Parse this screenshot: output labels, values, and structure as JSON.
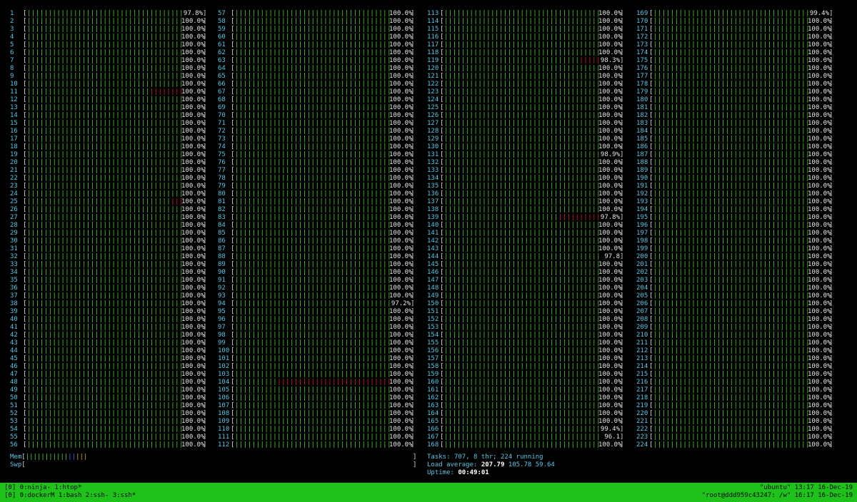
{
  "cpus": [
    {
      "n": "1",
      "pct": "97.8%",
      "red": 3
    },
    {
      "n": "2",
      "pct": "100.0%",
      "red": 0
    },
    {
      "n": "3",
      "pct": "100.0%",
      "red": 0
    },
    {
      "n": "4",
      "pct": "100.0%",
      "red": 0
    },
    {
      "n": "5",
      "pct": "100.0%",
      "red": 0
    },
    {
      "n": "6",
      "pct": "100.0%",
      "red": 0
    },
    {
      "n": "7",
      "pct": "100.0%",
      "red": 0
    },
    {
      "n": "8",
      "pct": "100.0%",
      "red": 0
    },
    {
      "n": "9",
      "pct": "100.0%",
      "red": 0
    },
    {
      "n": "10",
      "pct": "100.0%",
      "red": 0
    },
    {
      "n": "11",
      "pct": "100.0%",
      "red": 11
    },
    {
      "n": "12",
      "pct": "100.0%",
      "red": 0
    },
    {
      "n": "13",
      "pct": "100.0%",
      "red": 0
    },
    {
      "n": "14",
      "pct": "100.0%",
      "red": 0
    },
    {
      "n": "15",
      "pct": "100.0%",
      "red": 0
    },
    {
      "n": "16",
      "pct": "100.0%",
      "red": 0
    },
    {
      "n": "17",
      "pct": "100.0%",
      "red": 0
    },
    {
      "n": "18",
      "pct": "100.0%",
      "red": 0
    },
    {
      "n": "19",
      "pct": "100.0%",
      "red": 1
    },
    {
      "n": "20",
      "pct": "100.0%",
      "red": 2
    },
    {
      "n": "21",
      "pct": "100.0%",
      "red": 0
    },
    {
      "n": "22",
      "pct": "100.0%",
      "red": 0
    },
    {
      "n": "23",
      "pct": "100.0%",
      "red": 0
    },
    {
      "n": "24",
      "pct": "100.0%",
      "red": 0
    },
    {
      "n": "25",
      "pct": "100.0%",
      "red": 6
    },
    {
      "n": "26",
      "pct": "100.0%",
      "red": 0
    },
    {
      "n": "27",
      "pct": "100.0%",
      "red": 2
    },
    {
      "n": "28",
      "pct": "100.0%",
      "red": 3
    },
    {
      "n": "29",
      "pct": "100.0%",
      "red": 1
    },
    {
      "n": "30",
      "pct": "100.0%",
      "red": 1
    },
    {
      "n": "31",
      "pct": "100.0%",
      "red": 0
    },
    {
      "n": "32",
      "pct": "100.0%",
      "red": 1
    },
    {
      "n": "33",
      "pct": "100.0%",
      "red": 1
    },
    {
      "n": "34",
      "pct": "100.0%",
      "red": 0
    },
    {
      "n": "35",
      "pct": "100.0%",
      "red": 0
    },
    {
      "n": "36",
      "pct": "100.0%",
      "red": 0
    },
    {
      "n": "37",
      "pct": "100.0%",
      "red": 0
    },
    {
      "n": "38",
      "pct": "100.0%",
      "red": 0
    },
    {
      "n": "39",
      "pct": "100.0%",
      "red": 0
    },
    {
      "n": "40",
      "pct": "100.0%",
      "red": 1
    },
    {
      "n": "41",
      "pct": "100.0%",
      "red": 0
    },
    {
      "n": "42",
      "pct": "100.0%",
      "red": 0
    },
    {
      "n": "43",
      "pct": "100.0%",
      "red": 2
    },
    {
      "n": "44",
      "pct": "100.0%",
      "red": 0
    },
    {
      "n": "45",
      "pct": "100.0%",
      "red": 0
    },
    {
      "n": "46",
      "pct": "100.0%",
      "red": 0
    },
    {
      "n": "47",
      "pct": "100.0%",
      "red": 0
    },
    {
      "n": "48",
      "pct": "100.0%",
      "red": 0
    },
    {
      "n": "49",
      "pct": "100.0%",
      "red": 0
    },
    {
      "n": "50",
      "pct": "100.0%",
      "red": 0
    },
    {
      "n": "51",
      "pct": "100.0%",
      "red": 0
    },
    {
      "n": "52",
      "pct": "100.0%",
      "red": 0
    },
    {
      "n": "53",
      "pct": "100.0%",
      "red": 0
    },
    {
      "n": "54",
      "pct": "100.0%",
      "red": 2
    },
    {
      "n": "55",
      "pct": "100.0%",
      "red": 0
    },
    {
      "n": "56",
      "pct": "100.0%",
      "red": 0
    },
    {
      "n": "57",
      "pct": "100.0%",
      "red": 0
    },
    {
      "n": "58",
      "pct": "100.0%",
      "red": 0
    },
    {
      "n": "59",
      "pct": "100.0%",
      "red": 0
    },
    {
      "n": "60",
      "pct": "100.0%",
      "red": 0
    },
    {
      "n": "61",
      "pct": "100.0%",
      "red": 0
    },
    {
      "n": "62",
      "pct": "100.0%",
      "red": 0
    },
    {
      "n": "63",
      "pct": "100.0%",
      "red": 0
    },
    {
      "n": "64",
      "pct": "100.0%",
      "red": 3
    },
    {
      "n": "65",
      "pct": "100.0%",
      "red": 0
    },
    {
      "n": "66",
      "pct": "100.0%",
      "red": 0
    },
    {
      "n": "67",
      "pct": "100.0%",
      "red": 0
    },
    {
      "n": "68",
      "pct": "100.0%",
      "red": 0
    },
    {
      "n": "69",
      "pct": "100.0%",
      "red": 0
    },
    {
      "n": "70",
      "pct": "100.0%",
      "red": 0
    },
    {
      "n": "71",
      "pct": "100.0%",
      "red": 0
    },
    {
      "n": "72",
      "pct": "100.0%",
      "red": 0
    },
    {
      "n": "73",
      "pct": "100.0%",
      "red": 0
    },
    {
      "n": "74",
      "pct": "100.0%",
      "red": 0
    },
    {
      "n": "75",
      "pct": "100.0%",
      "red": 0
    },
    {
      "n": "76",
      "pct": "100.0%",
      "red": 0
    },
    {
      "n": "77",
      "pct": "100.0%",
      "red": 0
    },
    {
      "n": "78",
      "pct": "100.0%",
      "red": 0
    },
    {
      "n": "79",
      "pct": "100.0%",
      "red": 0
    },
    {
      "n": "80",
      "pct": "100.0%",
      "red": 0
    },
    {
      "n": "81",
      "pct": "100.0%",
      "red": 0
    },
    {
      "n": "82",
      "pct": "100.0%",
      "red": 0
    },
    {
      "n": "83",
      "pct": "100.0%",
      "red": 0
    },
    {
      "n": "84",
      "pct": "100.0%",
      "red": 0
    },
    {
      "n": "85",
      "pct": "100.0%",
      "red": 0
    },
    {
      "n": "86",
      "pct": "100.0%",
      "red": 0
    },
    {
      "n": "87",
      "pct": "100.0%",
      "red": 0
    },
    {
      "n": "88",
      "pct": "100.0%",
      "red": 0
    },
    {
      "n": "89",
      "pct": "100.0%",
      "red": 0
    },
    {
      "n": "90",
      "pct": "100.0%",
      "red": 0
    },
    {
      "n": "91",
      "pct": "100.0%",
      "red": 0
    },
    {
      "n": "92",
      "pct": "100.0%",
      "red": 0
    },
    {
      "n": "93",
      "pct": "100.0%",
      "red": 0
    },
    {
      "n": "94",
      "pct": "97.2%",
      "red": 0
    },
    {
      "n": "95",
      "pct": "100.0%",
      "red": 0
    },
    {
      "n": "96",
      "pct": "100.0%",
      "red": 1
    },
    {
      "n": "97",
      "pct": "100.0%",
      "red": 1
    },
    {
      "n": "98",
      "pct": "100.0%",
      "red": 0
    },
    {
      "n": "99",
      "pct": "100.0%",
      "red": 0
    },
    {
      "n": "100",
      "pct": "100.0%",
      "red": 0
    },
    {
      "n": "101",
      "pct": "100.0%",
      "red": 0
    },
    {
      "n": "102",
      "pct": "100.0%",
      "red": 0
    },
    {
      "n": "103",
      "pct": "100.0%",
      "red": 0
    },
    {
      "n": "104",
      "pct": "100.0%",
      "red": 30
    },
    {
      "n": "105",
      "pct": "100.0%",
      "red": 0
    },
    {
      "n": "106",
      "pct": "100.0%",
      "red": 0
    },
    {
      "n": "107",
      "pct": "100.0%",
      "red": 0
    },
    {
      "n": "108",
      "pct": "100.0%",
      "red": 0
    },
    {
      "n": "109",
      "pct": "100.0%",
      "red": 0
    },
    {
      "n": "110",
      "pct": "100.0%",
      "red": 0
    },
    {
      "n": "111",
      "pct": "100.0%",
      "red": 0
    },
    {
      "n": "112",
      "pct": "100.0%",
      "red": 0
    },
    {
      "n": "113",
      "pct": "100.0%",
      "red": 0
    },
    {
      "n": "114",
      "pct": "100.0%",
      "red": 0
    },
    {
      "n": "115",
      "pct": "100.0%",
      "red": 0
    },
    {
      "n": "116",
      "pct": "100.0%",
      "red": 0
    },
    {
      "n": "117",
      "pct": "100.0%",
      "red": 0
    },
    {
      "n": "118",
      "pct": "100.0%",
      "red": 0
    },
    {
      "n": "119",
      "pct": "98.3%",
      "red": 8
    },
    {
      "n": "120",
      "pct": "100.0%",
      "red": 0
    },
    {
      "n": "121",
      "pct": "100.0%",
      "red": 0
    },
    {
      "n": "122",
      "pct": "100.0%",
      "red": 0
    },
    {
      "n": "123",
      "pct": "100.0%",
      "red": 0
    },
    {
      "n": "124",
      "pct": "100.0%",
      "red": 0
    },
    {
      "n": "125",
      "pct": "100.0%",
      "red": 0
    },
    {
      "n": "126",
      "pct": "100.0%",
      "red": 1
    },
    {
      "n": "127",
      "pct": "100.0%",
      "red": 0
    },
    {
      "n": "128",
      "pct": "100.0%",
      "red": 0
    },
    {
      "n": "129",
      "pct": "100.0%",
      "red": 0
    },
    {
      "n": "130",
      "pct": "100.0%",
      "red": 0
    },
    {
      "n": "131",
      "pct": "98.9%",
      "red": 0
    },
    {
      "n": "132",
      "pct": "100.0%",
      "red": 0
    },
    {
      "n": "133",
      "pct": "100.0%",
      "red": 0
    },
    {
      "n": "134",
      "pct": "100.0%",
      "red": 0
    },
    {
      "n": "135",
      "pct": "100.0%",
      "red": 0
    },
    {
      "n": "136",
      "pct": "100.0%",
      "red": 0
    },
    {
      "n": "137",
      "pct": "100.0%",
      "red": 0
    },
    {
      "n": "138",
      "pct": "100.0%",
      "red": 0
    },
    {
      "n": "139",
      "pct": "97.8%",
      "red": 13
    },
    {
      "n": "140",
      "pct": "100.0%",
      "red": 0
    },
    {
      "n": "141",
      "pct": "100.0%",
      "red": 0
    },
    {
      "n": "142",
      "pct": "100.0%",
      "red": 0
    },
    {
      "n": "143",
      "pct": "100.0%",
      "red": 0
    },
    {
      "n": "144",
      "pct": "97.8",
      "red": 1
    },
    {
      "n": "145",
      "pct": "100.0%",
      "red": 0
    },
    {
      "n": "146",
      "pct": "100.0%",
      "red": 0
    },
    {
      "n": "147",
      "pct": "100.0%",
      "red": 0
    },
    {
      "n": "148",
      "pct": "100.0%",
      "red": 0
    },
    {
      "n": "149",
      "pct": "100.0%",
      "red": 0
    },
    {
      "n": "150",
      "pct": "100.0%",
      "red": 0
    },
    {
      "n": "151",
      "pct": "100.0%",
      "red": 0
    },
    {
      "n": "152",
      "pct": "100.0%",
      "red": 0
    },
    {
      "n": "153",
      "pct": "100.0%",
      "red": 0
    },
    {
      "n": "154",
      "pct": "100.0%",
      "red": 0
    },
    {
      "n": "155",
      "pct": "100.0%",
      "red": 0
    },
    {
      "n": "156",
      "pct": "100.0%",
      "red": 0
    },
    {
      "n": "157",
      "pct": "100.0%",
      "red": 0
    },
    {
      "n": "158",
      "pct": "100.0%",
      "red": 0
    },
    {
      "n": "159",
      "pct": "100.0%",
      "red": 0
    },
    {
      "n": "160",
      "pct": "100.0%",
      "red": 0
    },
    {
      "n": "161",
      "pct": "100.0%",
      "red": 0
    },
    {
      "n": "162",
      "pct": "100.0%",
      "red": 0
    },
    {
      "n": "163",
      "pct": "100.0%",
      "red": 0
    },
    {
      "n": "164",
      "pct": "100.0%",
      "red": 0
    },
    {
      "n": "165",
      "pct": "100.0%",
      "red": 0
    },
    {
      "n": "166",
      "pct": "99.4%",
      "red": 2
    },
    {
      "n": "167",
      "pct": "96.1",
      "red": 1
    },
    {
      "n": "168",
      "pct": "100.0%",
      "red": 0
    },
    {
      "n": "169",
      "pct": "99.4%",
      "red": 2
    },
    {
      "n": "170",
      "pct": "100.0%",
      "red": 0
    },
    {
      "n": "171",
      "pct": "100.0%",
      "red": 0
    },
    {
      "n": "172",
      "pct": "100.0%",
      "red": 0
    },
    {
      "n": "173",
      "pct": "100.0%",
      "red": 0
    },
    {
      "n": "174",
      "pct": "100.0%",
      "red": 0
    },
    {
      "n": "175",
      "pct": "100.0%",
      "red": 0
    },
    {
      "n": "176",
      "pct": "100.0%",
      "red": 0
    },
    {
      "n": "177",
      "pct": "100.0%",
      "red": 1
    },
    {
      "n": "178",
      "pct": "100.0%",
      "red": 0
    },
    {
      "n": "179",
      "pct": "100.0%",
      "red": 1
    },
    {
      "n": "180",
      "pct": "100.0%",
      "red": 0
    },
    {
      "n": "181",
      "pct": "100.0%",
      "red": 0
    },
    {
      "n": "182",
      "pct": "100.0%",
      "red": 1
    },
    {
      "n": "183",
      "pct": "100.0%",
      "red": 0
    },
    {
      "n": "184",
      "pct": "100.0%",
      "red": 0
    },
    {
      "n": "185",
      "pct": "100.0%",
      "red": 0
    },
    {
      "n": "186",
      "pct": "100.0%",
      "red": 0
    },
    {
      "n": "187",
      "pct": "100.0%",
      "red": 0
    },
    {
      "n": "188",
      "pct": "100.0%",
      "red": 0
    },
    {
      "n": "189",
      "pct": "100.0%",
      "red": 0
    },
    {
      "n": "190",
      "pct": "100.0%",
      "red": 0
    },
    {
      "n": "191",
      "pct": "100.0%",
      "red": 0
    },
    {
      "n": "192",
      "pct": "100.0%",
      "red": 0
    },
    {
      "n": "193",
      "pct": "100.0%",
      "red": 0
    },
    {
      "n": "194",
      "pct": "100.0%",
      "red": 0
    },
    {
      "n": "195",
      "pct": "100.0%",
      "red": 0
    },
    {
      "n": "196",
      "pct": "100.0%",
      "red": 0
    },
    {
      "n": "197",
      "pct": "100.0%",
      "red": 0
    },
    {
      "n": "198",
      "pct": "100.0%",
      "red": 0
    },
    {
      "n": "199",
      "pct": "100.0%",
      "red": 0
    },
    {
      "n": "200",
      "pct": "100.0%",
      "red": 0
    },
    {
      "n": "201",
      "pct": "100.0%",
      "red": 0
    },
    {
      "n": "202",
      "pct": "100.0%",
      "red": 0
    },
    {
      "n": "203",
      "pct": "100.0%",
      "red": 0
    },
    {
      "n": "204",
      "pct": "100.0%",
      "red": 0
    },
    {
      "n": "205",
      "pct": "100.0%",
      "red": 0
    },
    {
      "n": "206",
      "pct": "100.0%",
      "red": 0
    },
    {
      "n": "207",
      "pct": "100.0%",
      "red": 0
    },
    {
      "n": "208",
      "pct": "100.0%",
      "red": 0
    },
    {
      "n": "209",
      "pct": "100.0%",
      "red": 0
    },
    {
      "n": "210",
      "pct": "100.0%",
      "red": 0
    },
    {
      "n": "211",
      "pct": "100.0%",
      "red": 0
    },
    {
      "n": "212",
      "pct": "100.0%",
      "red": 3
    },
    {
      "n": "213",
      "pct": "100.0%",
      "red": 0
    },
    {
      "n": "214",
      "pct": "100.0%",
      "red": 0
    },
    {
      "n": "215",
      "pct": "100.0%",
      "red": 0
    },
    {
      "n": "216",
      "pct": "100.0%",
      "red": 0
    },
    {
      "n": "217",
      "pct": "100.0%",
      "red": 0
    },
    {
      "n": "218",
      "pct": "100.0%",
      "red": 0
    },
    {
      "n": "219",
      "pct": "100.0%",
      "red": 0
    },
    {
      "n": "220",
      "pct": "100.0%",
      "red": 0
    },
    {
      "n": "221",
      "pct": "100.0%",
      "red": 0
    },
    {
      "n": "222",
      "pct": "100.0%",
      "red": 0
    },
    {
      "n": "223",
      "pct": "100.0%",
      "red": 0
    },
    {
      "n": "224",
      "pct": "100.0%",
      "red": 0
    }
  ],
  "mem": {
    "label": "Mem"
  },
  "swp": {
    "label": "Swp"
  },
  "tasks": {
    "label": "Tasks:",
    "count": "707,",
    "thr": "8 thr;",
    "running_count": "224",
    "running_label": "running"
  },
  "load": {
    "label": "Load average:",
    "l1": "207.79",
    "l5": "105.78",
    "l15": "59.64"
  },
  "uptime": {
    "label": "Uptime:",
    "value": "00:49:01"
  },
  "tmux": {
    "line1_left": "[0] 0:ninja- 1:htop*",
    "line2_left": "[0] 0:dockerM 1:bash  2:ssh- 3:ssh*",
    "line1_right": "\"ubuntu\" 13:17 16-Dec-19",
    "line2_right": "\"root@ddd959c43247: /w\" 16:17 16-Dec-19"
  },
  "colors": {
    "green": "#4ed02b",
    "red": "#d3292a",
    "cyan": "#55c7e6",
    "statusbar": "#1ec21a"
  }
}
